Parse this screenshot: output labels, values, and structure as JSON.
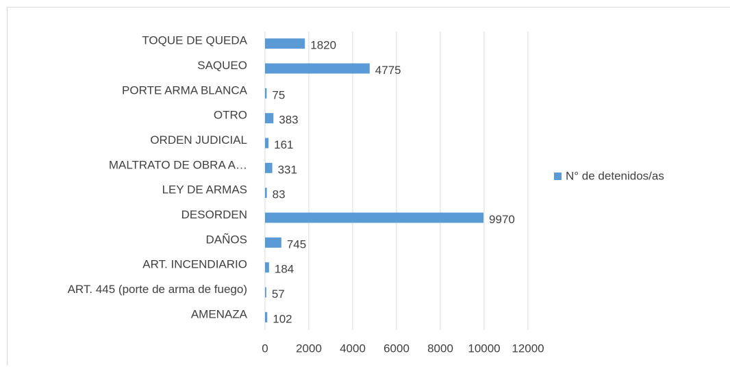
{
  "chart_data": {
    "type": "bar",
    "orientation": "horizontal",
    "categories": [
      "TOQUE DE QUEDA",
      "SAQUEO",
      "PORTE ARMA BLANCA",
      "OTRO",
      "ORDEN JUDICIAL",
      "MALTRATO DE OBRA A…",
      "LEY DE ARMAS",
      "DESORDEN",
      "DAÑOS",
      "ART. INCENDIARIO",
      "ART. 445 (porte de arma de fuego)",
      "AMENAZA"
    ],
    "series": [
      {
        "name": "N° de detenidos/as",
        "color": "#5b9bd5",
        "values": [
          1820,
          4775,
          75,
          383,
          161,
          331,
          83,
          9970,
          745,
          184,
          57,
          102
        ]
      }
    ],
    "xlim": [
      0,
      12000
    ],
    "xticks": [
      0,
      2000,
      4000,
      6000,
      8000,
      10000,
      12000
    ],
    "grid": true,
    "legend": "right"
  }
}
